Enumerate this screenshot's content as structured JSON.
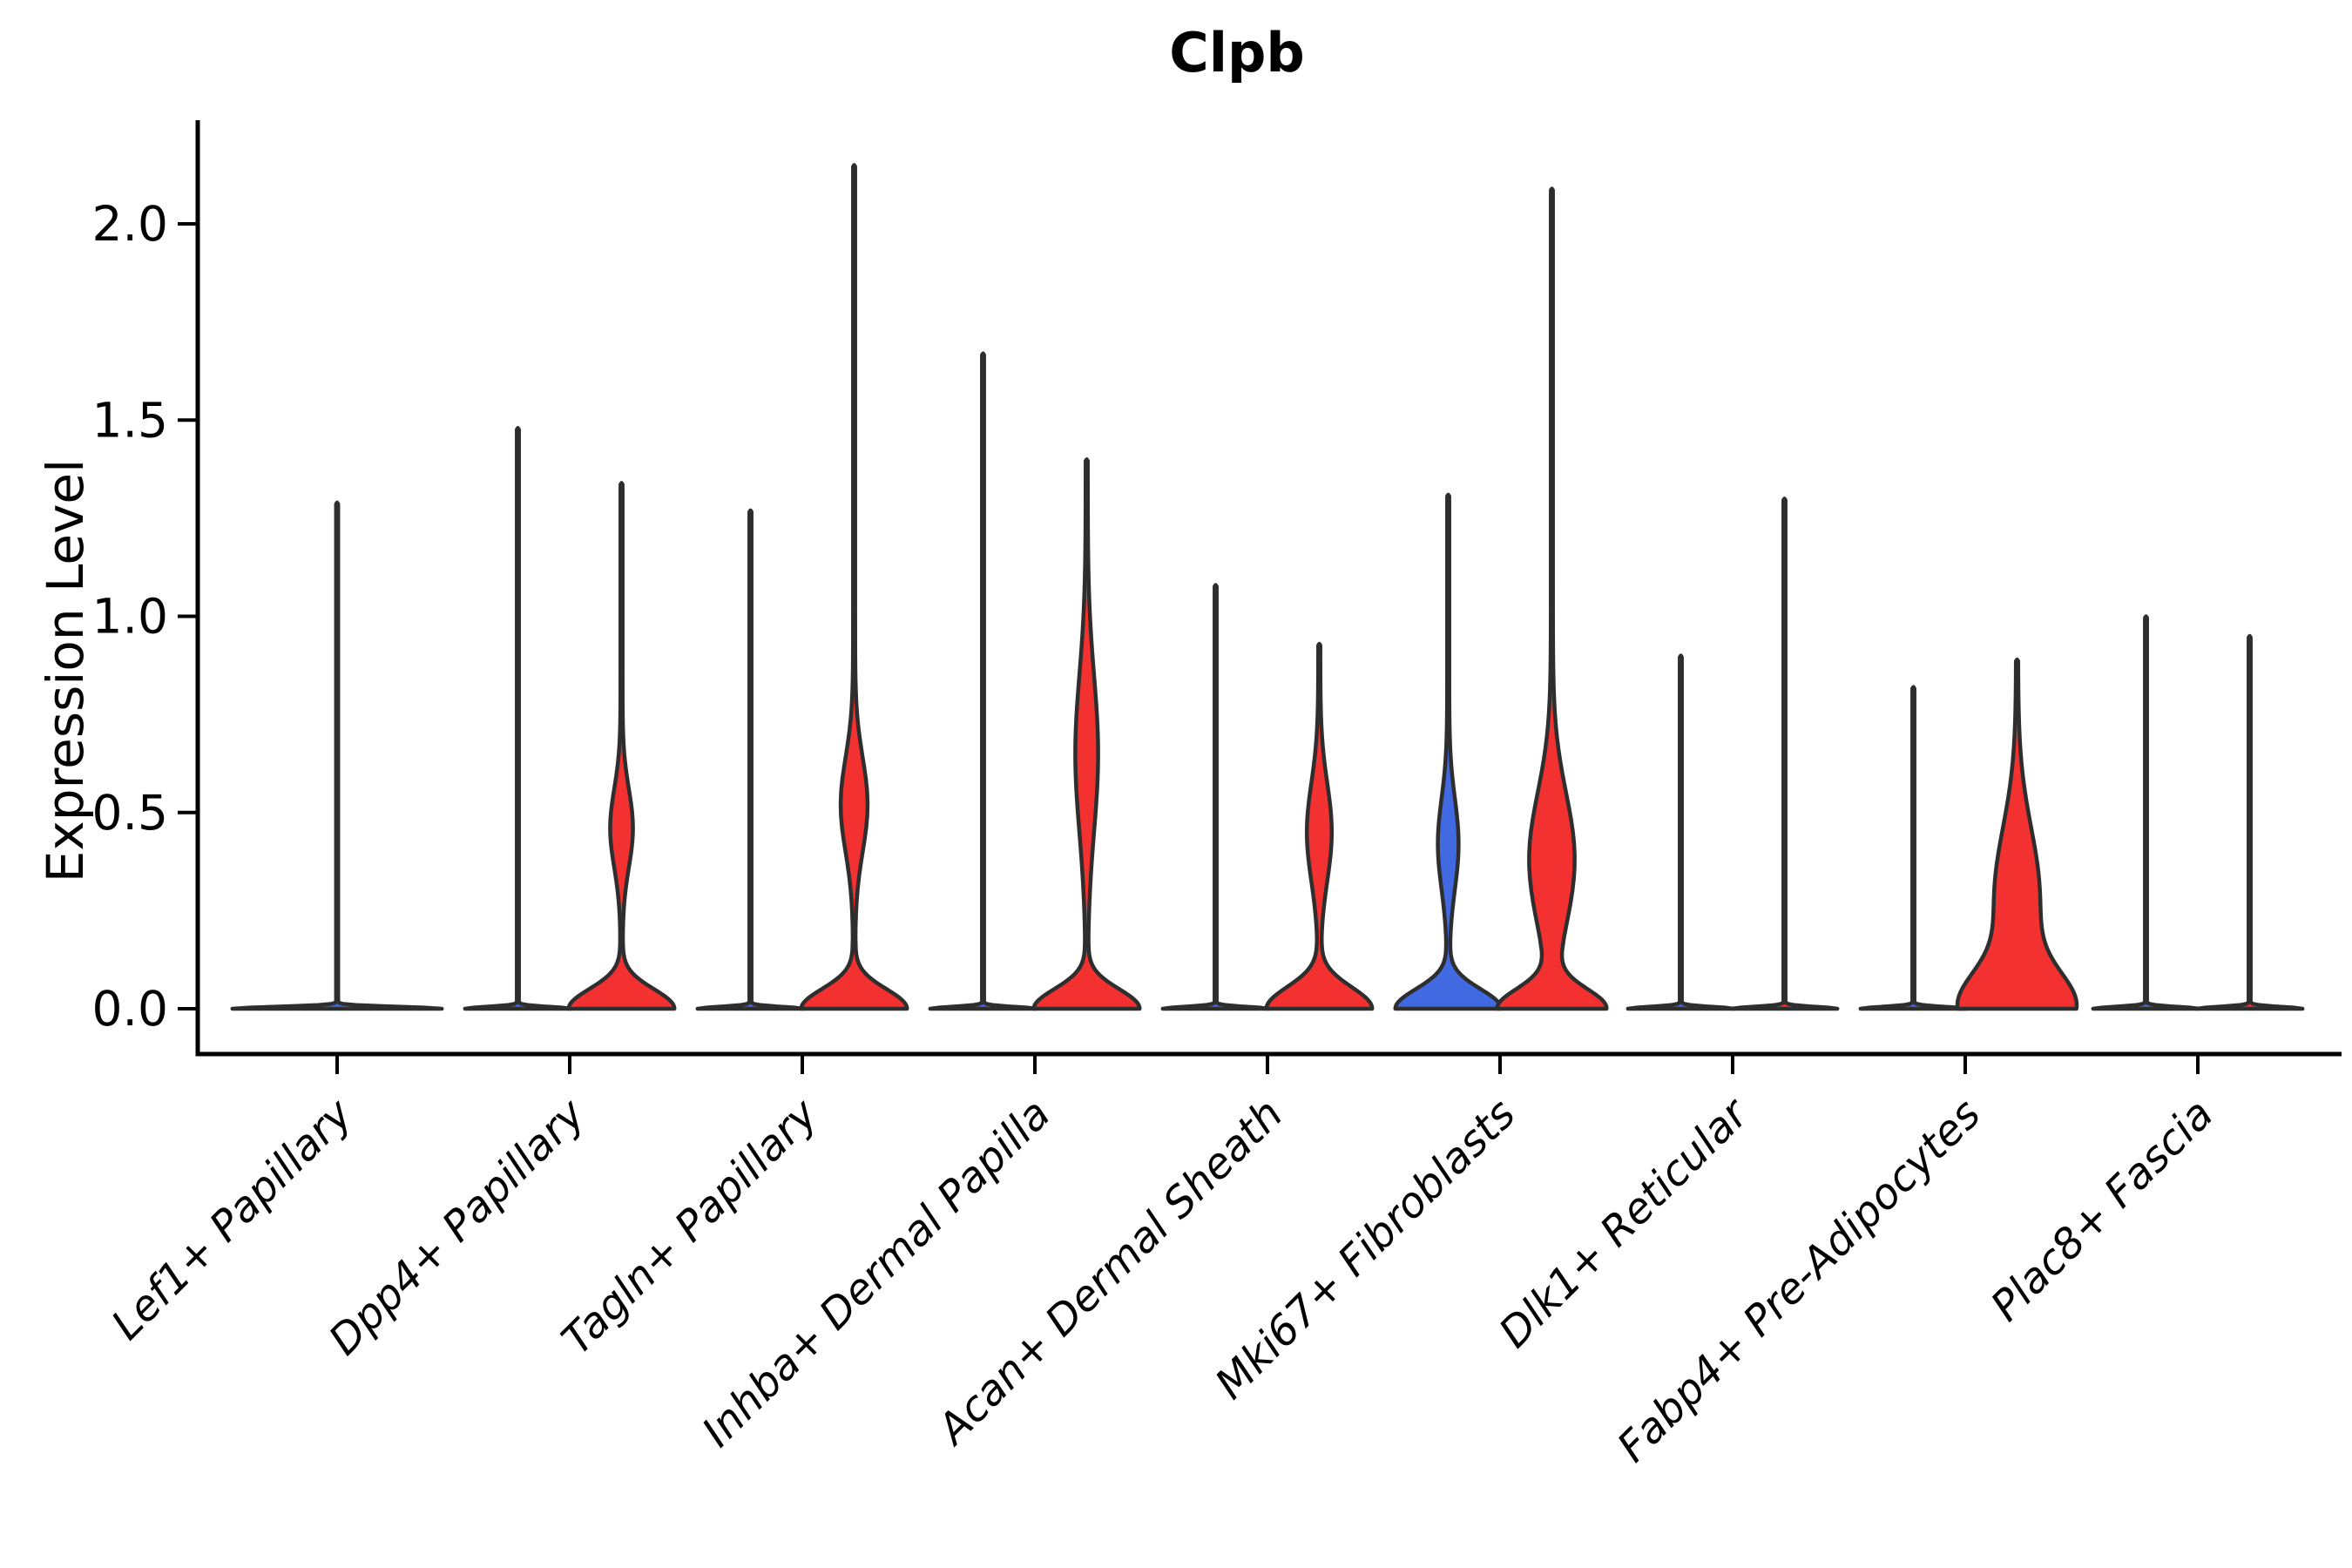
{
  "chart_data": {
    "type": "violin",
    "title": "Clpb",
    "ylabel": "Expression Level",
    "xlabel": "",
    "grid": false,
    "legend_position": "none",
    "ylim": [
      0,
      2.25
    ],
    "ytick_labels": [
      "0.0",
      "0.5",
      "1.0",
      "1.5",
      "2.0"
    ],
    "ytick_values": [
      0.0,
      0.5,
      1.0,
      1.5,
      2.0
    ],
    "colors": {
      "blue": "#4169E1",
      "red": "#F43131",
      "edge": "#2E2E2E",
      "axis": "#000000"
    },
    "categories": [
      "Lef1+ Papillary",
      "Dpp4+ Papillary",
      "Tagln+ Papillary",
      "Inhba+ Dermal Papilla",
      "Acan+ Dermal Sheath",
      "Mki67+ Fibroblasts",
      "Dlk1+ Reticular",
      "Fabp4+ Pre-Adipocytes",
      "Plac8+ Fascia"
    ],
    "groups": [
      {
        "category": "Lef1+ Papillary",
        "violins": [
          {
            "position": "center",
            "color": "blue",
            "max": 1.29,
            "shape": {
              "base_amp": 1,
              "base_sd": 0.005
            }
          }
        ]
      },
      {
        "category": "Dpp4+ Papillary",
        "violins": [
          {
            "position": "left",
            "color": "blue",
            "max": 1.48,
            "shape": {
              "base_amp": 1,
              "base_sd": 0.005
            }
          },
          {
            "position": "right",
            "color": "red",
            "max": 1.34,
            "shape": {
              "base_amp": 1,
              "base_sd": 0.05,
              "bulge_center": 0.46,
              "bulge_sd": 0.1,
              "bulge_amp": 0.2
            }
          }
        ]
      },
      {
        "category": "Tagln+ Papillary",
        "violins": [
          {
            "position": "left",
            "color": "blue",
            "max": 1.27,
            "shape": {
              "base_amp": 1,
              "base_sd": 0.005
            }
          },
          {
            "position": "right",
            "color": "red",
            "max": 2.15,
            "shape": {
              "base_amp": 1,
              "base_sd": 0.05,
              "bulge_center": 0.52,
              "bulge_sd": 0.12,
              "bulge_amp": 0.24
            }
          }
        ]
      },
      {
        "category": "Inhba+ Dermal Papilla",
        "violins": [
          {
            "position": "left",
            "color": "blue",
            "max": 1.67,
            "shape": {
              "base_amp": 1,
              "base_sd": 0.005
            }
          },
          {
            "position": "right",
            "color": "red",
            "max": 1.4,
            "shape": {
              "base_amp": 1,
              "base_sd": 0.05,
              "bulge_center": 0.65,
              "bulge_sd": 0.2,
              "bulge_amp": 0.2
            }
          }
        ]
      },
      {
        "category": "Acan+ Dermal Sheath",
        "violins": [
          {
            "position": "left",
            "color": "blue",
            "max": 1.08,
            "shape": {
              "base_amp": 1,
              "base_sd": 0.005
            }
          },
          {
            "position": "right",
            "color": "red",
            "max": 0.93,
            "shape": {
              "base_amp": 1,
              "base_sd": 0.055,
              "bulge_center": 0.45,
              "bulge_sd": 0.125,
              "bulge_amp": 0.22
            }
          }
        ]
      },
      {
        "category": "Mki67+ Fibroblasts",
        "violins": [
          {
            "position": "left",
            "color": "blue",
            "max": 1.31,
            "shape": {
              "base_amp": 1,
              "base_sd": 0.05,
              "bulge_center": 0.42,
              "bulge_sd": 0.115,
              "bulge_amp": 0.18
            }
          },
          {
            "position": "right",
            "color": "red",
            "max": 2.09,
            "shape": {
              "base_amp": 1,
              "base_sd": 0.05,
              "bulge_center": 0.38,
              "bulge_sd": 0.17,
              "bulge_amp": 0.42
            }
          }
        ]
      },
      {
        "category": "Dlk1+ Reticular",
        "violins": [
          {
            "position": "left",
            "color": "blue",
            "max": 0.9,
            "shape": {
              "base_amp": 1,
              "base_sd": 0.005
            }
          },
          {
            "position": "right",
            "color": "red",
            "max": 1.3,
            "shape": {
              "base_amp": 1,
              "base_sd": 0.005
            }
          }
        ]
      },
      {
        "category": "Fabp4+ Pre-Adipocytes",
        "violins": [
          {
            "position": "left",
            "color": "blue",
            "max": 0.82,
            "shape": {
              "base_amp": 1,
              "base_sd": 0.005
            }
          },
          {
            "position": "right",
            "color": "red",
            "max": 0.89,
            "shape": {
              "base_amp": 1,
              "base_sd": 0.09,
              "bulge_center": 0.28,
              "bulge_sd": 0.18,
              "bulge_amp": 0.42
            }
          }
        ]
      },
      {
        "category": "Plac8+ Fascia",
        "violins": [
          {
            "position": "left",
            "color": "blue",
            "max": 1.0,
            "shape": {
              "base_amp": 1,
              "base_sd": 0.005
            }
          },
          {
            "position": "right",
            "color": "red",
            "max": 0.95,
            "shape": {
              "base_amp": 1,
              "base_sd": 0.005
            }
          }
        ]
      }
    ]
  }
}
